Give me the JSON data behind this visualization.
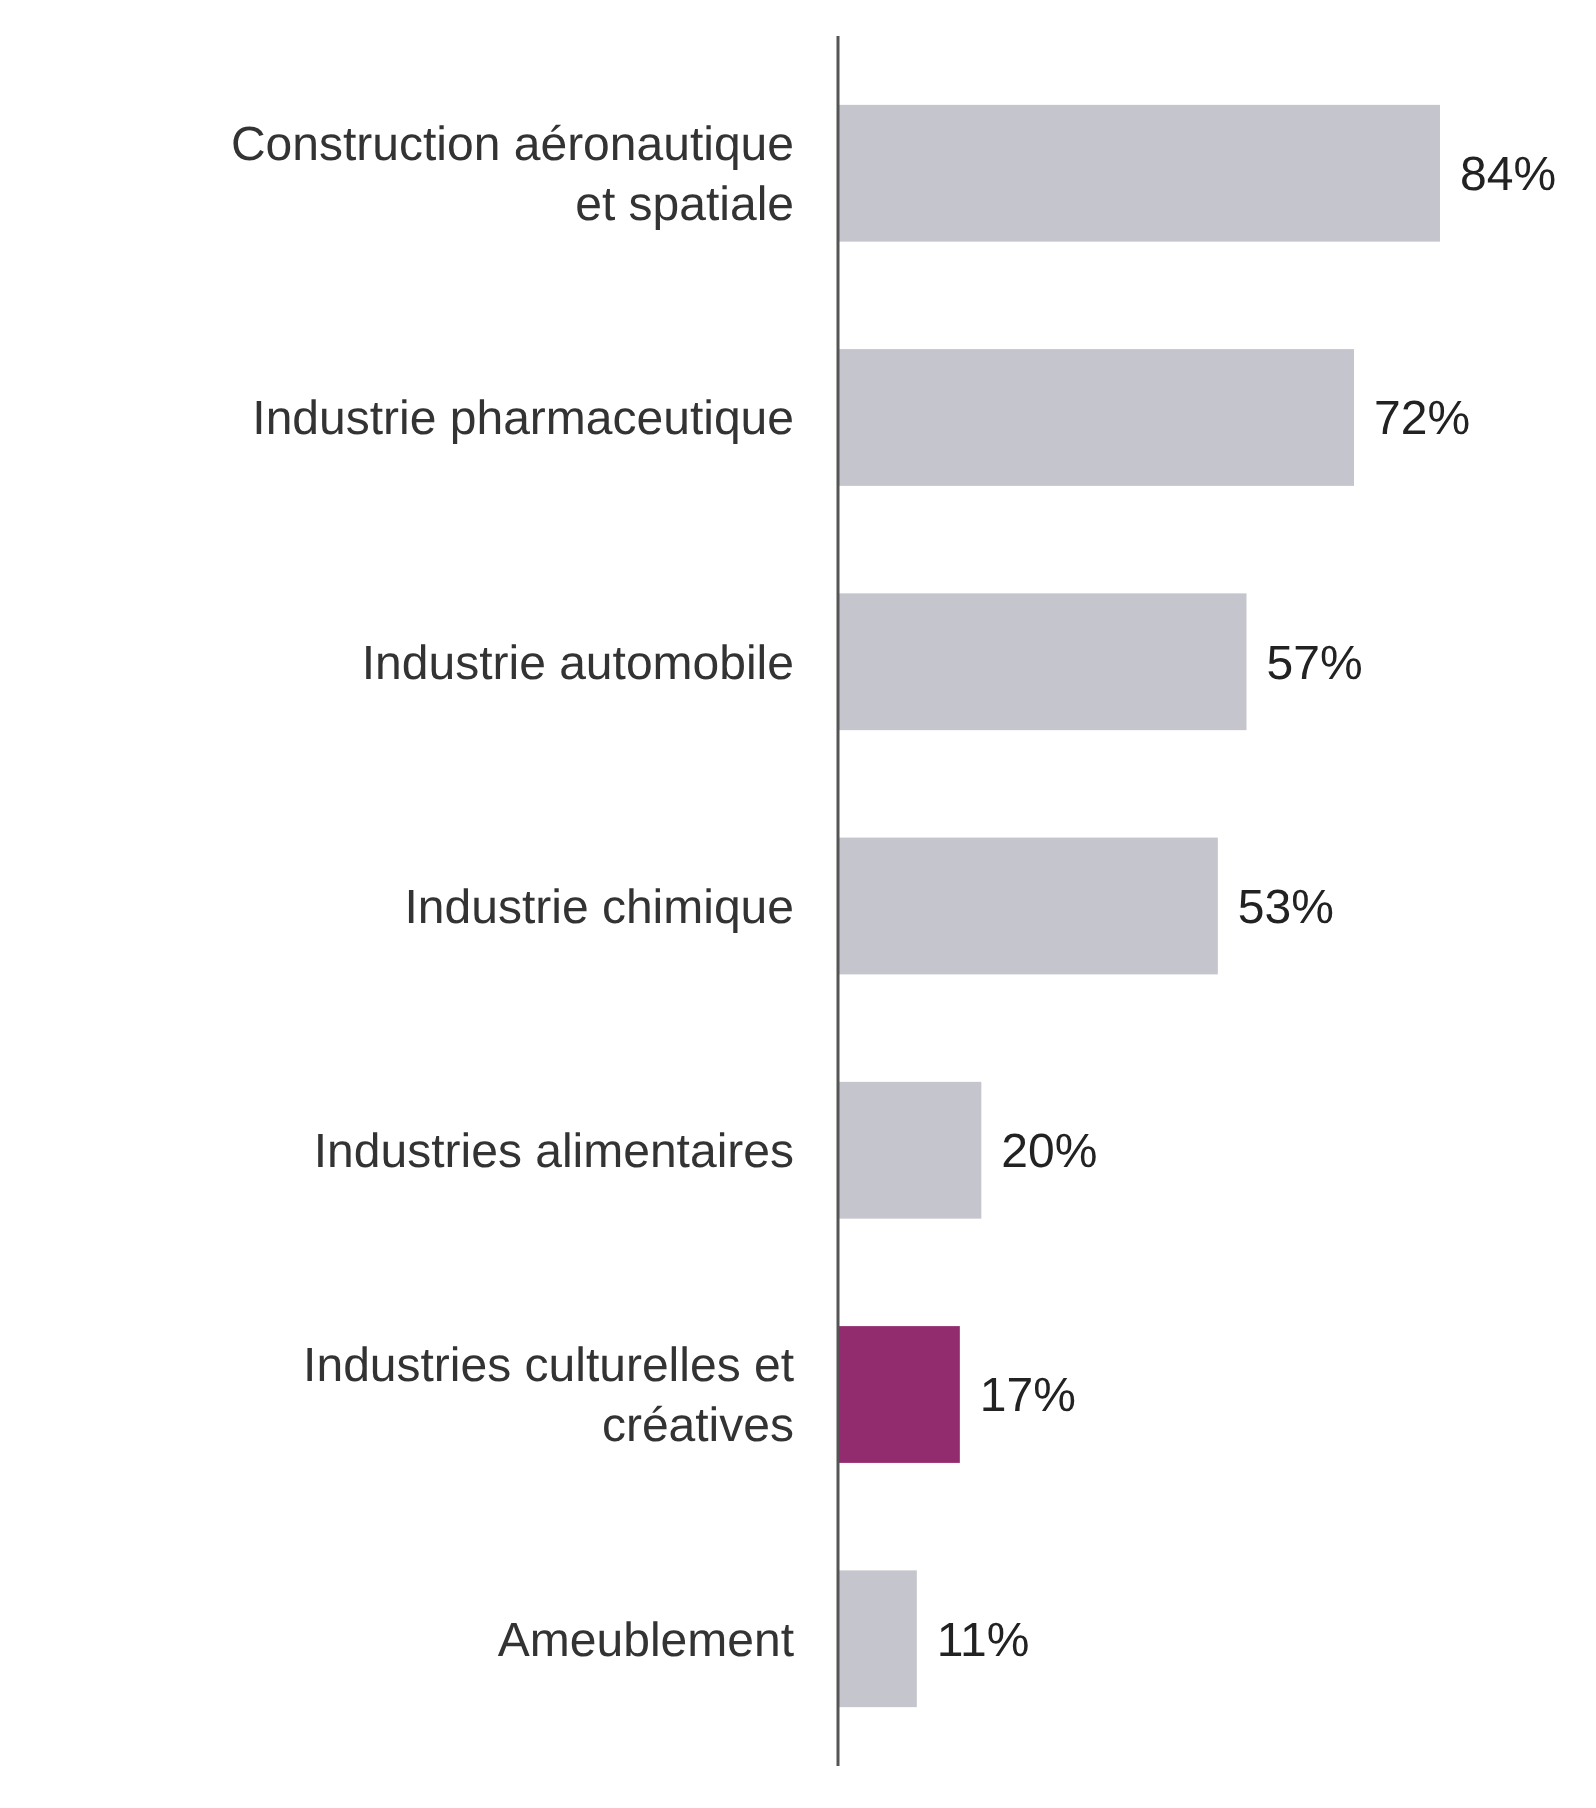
{
  "chart_data": {
    "type": "bar",
    "orientation": "horizontal",
    "categories": [
      "Construction aéronautique et spatiale",
      "Industrie pharmaceutique",
      "Industrie automobile",
      "Industrie chimique",
      "Industries alimentaires",
      "Industries culturelles et créatives",
      "Ameublement"
    ],
    "values": [
      84,
      72,
      57,
      53,
      20,
      17,
      11
    ],
    "colors": [
      "#c5c5cd",
      "#c5c5cd",
      "#c5c5cd",
      "#c5c5cd",
      "#c5c5cd",
      "#932b6f",
      "#c5c5cd"
    ],
    "value_labels": [
      "84%",
      "72%",
      "57%",
      "53%",
      "20%",
      "17%",
      "11%"
    ]
  }
}
